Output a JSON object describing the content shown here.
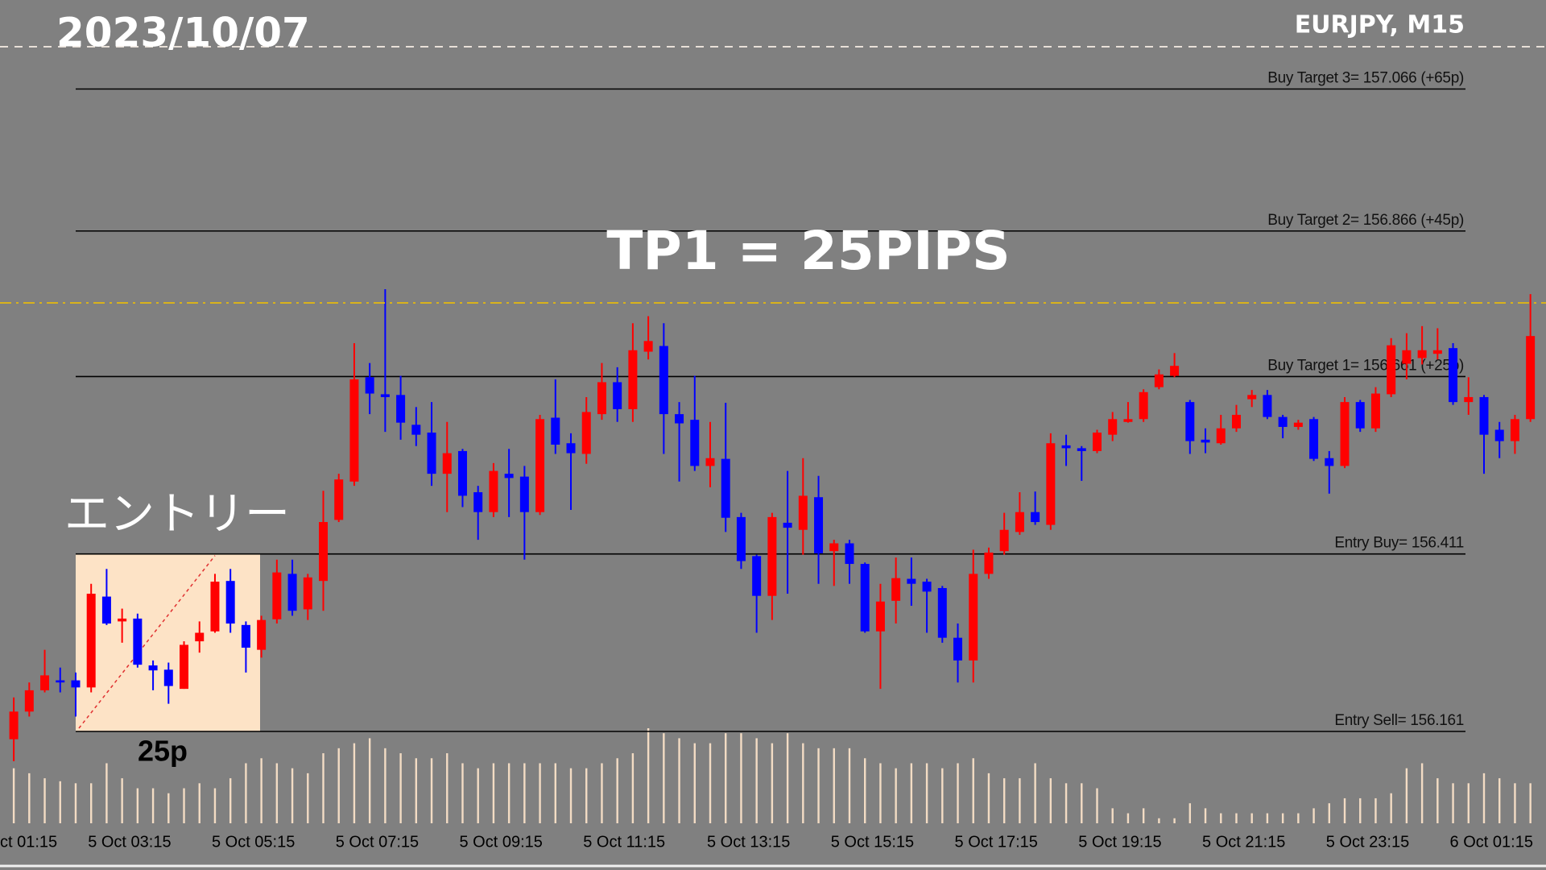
{
  "chart_data": {
    "type": "candlestick",
    "title": "2023/10/07",
    "subtitle": "EURJPY, M15",
    "annotations": [
      "TP1 = 25PIPS",
      "エントリー",
      "25p"
    ],
    "up_color": "#ff0000",
    "down_color": "#0000ff",
    "volume_color": "#f3dcc4",
    "levels": [
      {
        "label": "Buy Target 3= 157.066 (+65p)",
        "value": 157.066
      },
      {
        "label": "Buy Target 2= 156.866 (+45p)",
        "value": 156.866
      },
      {
        "label": "Buy Target 1= 156.661 (+25p)",
        "value": 156.661
      },
      {
        "label": "Entry Buy= 156.411",
        "value": 156.411
      },
      {
        "label": "Entry Sell= 156.161",
        "value": 156.161
      }
    ],
    "xticks": [
      {
        "value": -3,
        "label": "ct 01:15"
      },
      {
        "value": 5,
        "label": "5 Oct 03:15"
      },
      {
        "value": 13,
        "label": "5 Oct 05:15"
      },
      {
        "value": 21,
        "label": "5 Oct 07:15"
      },
      {
        "value": 29,
        "label": "5 Oct 09:15"
      },
      {
        "value": 37,
        "label": "5 Oct 11:15"
      },
      {
        "value": 45,
        "label": "5 Oct 13:15"
      },
      {
        "value": 53,
        "label": "5 Oct 15:15"
      },
      {
        "value": 61,
        "label": "5 Oct 17:15"
      },
      {
        "value": 69,
        "label": "5 Oct 19:15"
      },
      {
        "value": 77,
        "label": "5 Oct 21:15"
      },
      {
        "value": 85,
        "label": "5 Oct 23:15"
      },
      {
        "value": 93,
        "label": "6 Oct 01:15"
      }
    ],
    "open": [
      156.15,
      156.189,
      156.219,
      156.233,
      156.233,
      156.223,
      156.351,
      156.316,
      156.32,
      156.254,
      156.248,
      156.221,
      156.288,
      156.302,
      156.373,
      156.311,
      156.276,
      156.319,
      156.383,
      156.333,
      156.373,
      156.459,
      156.513,
      156.66,
      156.636,
      156.635,
      156.593,
      156.582,
      156.524,
      156.556,
      156.498,
      156.47,
      156.524,
      156.52,
      156.47,
      156.603,
      156.567,
      156.552,
      156.608,
      156.653,
      156.615,
      156.696,
      156.704,
      156.608,
      156.6,
      156.535,
      156.545,
      156.463,
      156.408,
      156.352,
      156.455,
      156.445,
      156.491,
      156.415,
      156.426,
      156.397,
      156.302,
      156.345,
      156.376,
      156.372,
      156.363,
      156.293,
      156.261,
      156.383,
      156.415,
      156.442,
      156.47,
      156.452,
      156.564,
      156.56,
      156.556,
      156.579,
      156.597,
      156.601,
      156.646,
      156.662,
      156.625,
      156.572,
      156.567,
      156.588,
      156.629,
      156.635,
      156.604,
      156.59,
      156.601,
      156.546,
      156.535,
      156.625,
      156.588,
      156.636,
      156.679,
      156.687,
      156.693,
      156.701,
      156.625,
      156.632,
      156.586,
      156.57,
      156.601
    ],
    "high": [
      156.209,
      156.23,
      156.276,
      156.251,
      156.244,
      156.369,
      156.39,
      156.334,
      156.327,
      156.261,
      156.258,
      156.288,
      156.316,
      156.383,
      156.39,
      156.316,
      156.324,
      156.403,
      156.403,
      156.383,
      156.5,
      156.524,
      156.708,
      156.68,
      156.784,
      156.662,
      156.618,
      156.625,
      156.597,
      156.559,
      156.507,
      156.539,
      156.559,
      156.535,
      156.607,
      156.657,
      156.581,
      156.632,
      156.68,
      156.674,
      156.736,
      156.746,
      156.736,
      156.625,
      156.662,
      156.597,
      156.624,
      156.469,
      156.41,
      156.469,
      156.528,
      156.546,
      156.521,
      156.431,
      156.431,
      156.399,
      156.369,
      156.406,
      156.406,
      156.376,
      156.366,
      156.313,
      156.417,
      156.42,
      156.469,
      156.498,
      156.499,
      156.581,
      156.579,
      156.563,
      156.586,
      156.611,
      156.625,
      156.643,
      156.671,
      156.694,
      156.628,
      156.588,
      156.607,
      156.621,
      156.642,
      156.642,
      156.607,
      156.6,
      156.604,
      156.556,
      156.632,
      156.628,
      156.646,
      156.715,
      156.722,
      156.732,
      156.729,
      156.708,
      156.66,
      156.635,
      156.597,
      156.607,
      156.777
    ],
    "low": [
      156.119,
      156.182,
      156.216,
      156.216,
      156.182,
      156.216,
      156.311,
      156.286,
      156.251,
      156.219,
      156.2,
      156.221,
      156.272,
      156.3,
      156.3,
      156.244,
      156.265,
      156.313,
      156.324,
      156.318,
      156.331,
      156.456,
      156.507,
      156.608,
      156.583,
      156.572,
      156.563,
      156.507,
      156.47,
      156.477,
      156.431,
      156.463,
      156.463,
      156.403,
      156.466,
      156.552,
      156.473,
      156.538,
      156.6,
      156.597,
      156.597,
      156.685,
      156.552,
      156.513,
      156.528,
      156.505,
      156.442,
      156.39,
      156.3,
      156.318,
      156.355,
      156.41,
      156.369,
      156.366,
      156.369,
      156.3,
      156.221,
      156.313,
      156.338,
      156.3,
      156.286,
      156.23,
      156.23,
      156.376,
      156.41,
      156.438,
      156.452,
      156.445,
      156.535,
      156.514,
      156.553,
      156.57,
      156.596,
      156.597,
      156.643,
      156.66,
      156.552,
      156.553,
      156.565,
      156.583,
      156.618,
      156.601,
      156.574,
      156.586,
      156.542,
      156.496,
      156.532,
      156.583,
      156.583,
      156.632,
      156.657,
      156.678,
      156.685,
      156.621,
      156.607,
      156.524,
      156.546,
      156.552,
      156.597
    ],
    "close": [
      156.189,
      156.219,
      156.24,
      156.23,
      156.223,
      156.355,
      156.313,
      156.32,
      156.255,
      156.247,
      156.225,
      156.283,
      156.3,
      156.372,
      156.313,
      156.279,
      156.318,
      156.385,
      156.331,
      156.378,
      156.456,
      156.516,
      156.657,
      156.637,
      156.632,
      156.596,
      156.579,
      156.524,
      156.553,
      156.493,
      156.47,
      156.528,
      156.518,
      156.47,
      156.601,
      156.565,
      156.553,
      156.611,
      156.653,
      156.615,
      156.698,
      156.711,
      156.608,
      156.595,
      156.535,
      156.546,
      156.462,
      156.401,
      156.352,
      156.463,
      156.448,
      156.493,
      156.412,
      156.426,
      156.397,
      156.302,
      156.344,
      156.377,
      156.369,
      156.358,
      156.293,
      156.261,
      156.383,
      156.413,
      156.445,
      156.47,
      156.456,
      156.567,
      156.56,
      156.556,
      156.582,
      156.601,
      156.601,
      156.639,
      156.664,
      156.676,
      156.57,
      156.568,
      156.588,
      156.607,
      156.635,
      156.604,
      156.59,
      156.596,
      156.545,
      156.535,
      156.625,
      156.588,
      156.637,
      156.705,
      156.698,
      156.698,
      156.698,
      156.625,
      156.632,
      156.579,
      156.57,
      156.601,
      156.718
    ],
    "volume": [
      55,
      50,
      45,
      42,
      40,
      40,
      60,
      45,
      35,
      35,
      30,
      35,
      40,
      35,
      45,
      60,
      65,
      60,
      55,
      50,
      70,
      75,
      80,
      85,
      75,
      70,
      65,
      65,
      70,
      60,
      55,
      60,
      60,
      60,
      60,
      60,
      55,
      55,
      60,
      65,
      70,
      95,
      90,
      85,
      80,
      80,
      90,
      90,
      85,
      80,
      90,
      80,
      75,
      75,
      75,
      65,
      60,
      55,
      60,
      60,
      55,
      60,
      65,
      50,
      45,
      45,
      60,
      45,
      40,
      40,
      35,
      15,
      10,
      15,
      5,
      5,
      20,
      15,
      10,
      10,
      10,
      10,
      10,
      10,
      15,
      20,
      25,
      25,
      25,
      30,
      55,
      60,
      45,
      40,
      40,
      50,
      45,
      40,
      40
    ]
  }
}
